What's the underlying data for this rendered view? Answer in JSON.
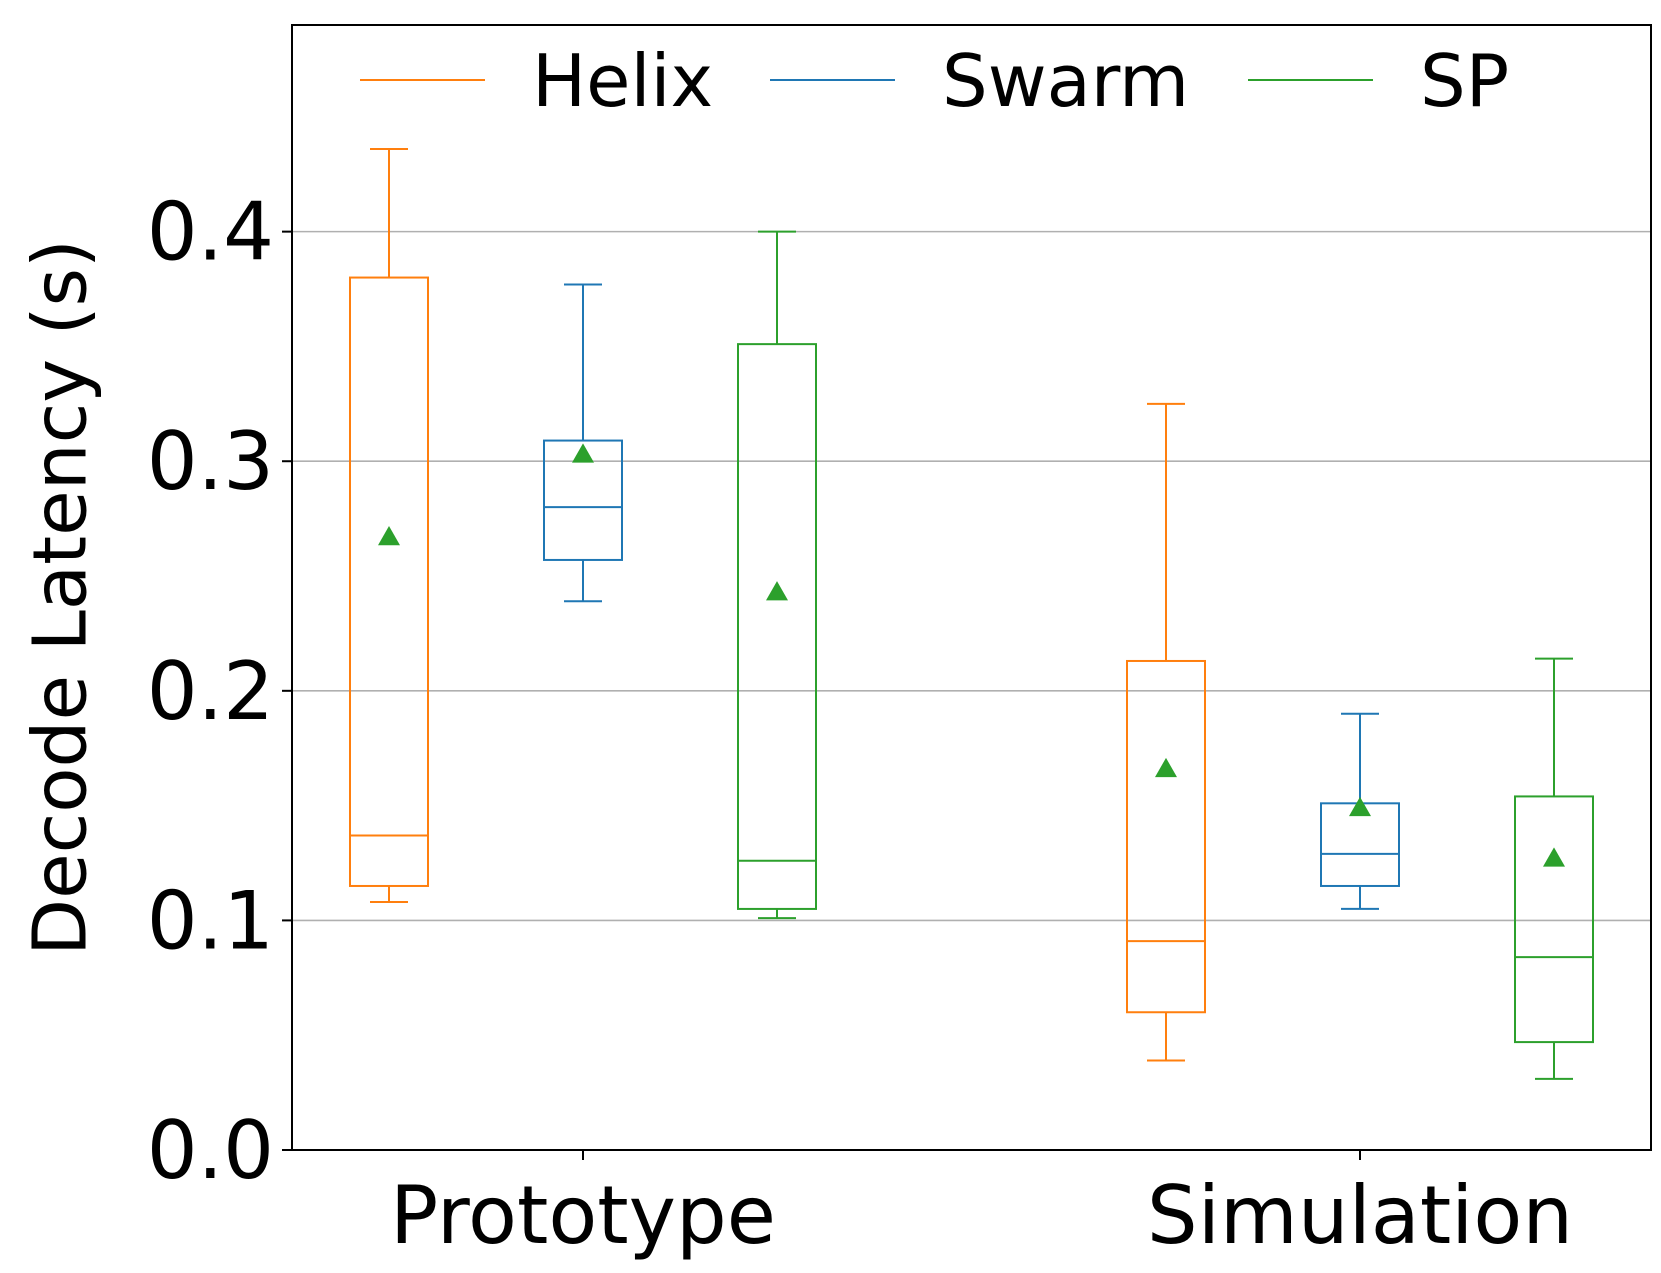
{
  "chart_data": {
    "type": "box",
    "title": "",
    "xlabel": "",
    "ylabel": "Decode Latency (s)",
    "ylim": [
      0.0,
      0.49
    ],
    "yticks": [
      0.0,
      0.1,
      0.2,
      0.3,
      0.4
    ],
    "ytick_labels": [
      "0.0",
      "0.1",
      "0.2",
      "0.3",
      "0.4"
    ],
    "grid": "horizontal",
    "legend": "top, horizontal",
    "categories": [
      "Prototype",
      "Simulation"
    ],
    "mean_marker_color": "#2ca02c",
    "series": [
      {
        "name": "Helix",
        "color": "#ff7f0e",
        "boxes": [
          {
            "whislo": 0.108,
            "q1": 0.115,
            "med": 0.137,
            "q3": 0.38,
            "whishi": 0.436,
            "mean": 0.267
          },
          {
            "whislo": 0.039,
            "q1": 0.06,
            "med": 0.091,
            "q3": 0.213,
            "whishi": 0.325,
            "mean": 0.166
          }
        ]
      },
      {
        "name": "Swarm",
        "color": "#1f77b4",
        "boxes": [
          {
            "whislo": 0.239,
            "q1": 0.257,
            "med": 0.28,
            "q3": 0.309,
            "whishi": 0.377,
            "mean": 0.303
          },
          {
            "whislo": 0.105,
            "q1": 0.115,
            "med": 0.129,
            "q3": 0.151,
            "whishi": 0.19,
            "mean": 0.149
          }
        ]
      },
      {
        "name": "SP",
        "color": "#2ca02c",
        "boxes": [
          {
            "whislo": 0.101,
            "q1": 0.105,
            "med": 0.126,
            "q3": 0.351,
            "whishi": 0.4,
            "mean": 0.243
          },
          {
            "whislo": 0.031,
            "q1": 0.047,
            "med": 0.084,
            "q3": 0.154,
            "whishi": 0.214,
            "mean": 0.127
          }
        ]
      }
    ]
  }
}
